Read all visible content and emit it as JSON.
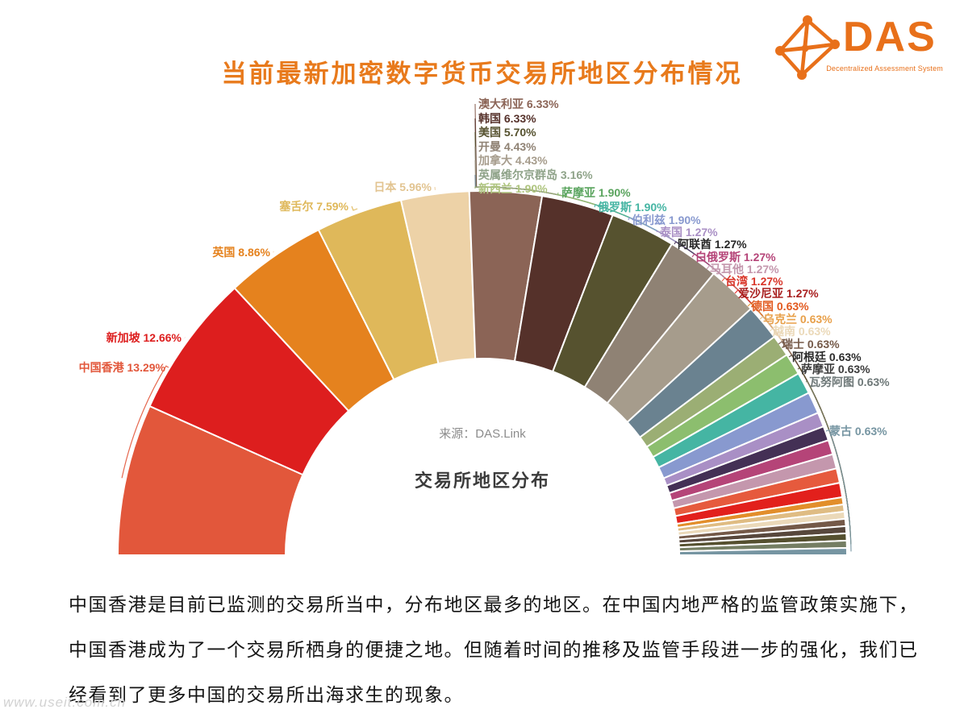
{
  "header": {
    "title": "当前最新加密数字货币交易所地区分布情况",
    "title_color": "#E87A1C",
    "logo": {
      "name": "DAS",
      "subtitle": "Decentralized Assessment System",
      "color": "#E8701A"
    }
  },
  "chart_data": {
    "type": "pie",
    "shape": "half-donut",
    "title": "交易所地区分布",
    "source_note": "来源：DAS.Link",
    "unit": "%",
    "start_angle": 180,
    "end_angle": 0,
    "inner_radius_ratio": 0.54,
    "slices": [
      {
        "name": "中国香港",
        "value": 13.29,
        "color": "#E2573B"
      },
      {
        "name": "新加坡",
        "value": 12.66,
        "color": "#DD1E1E"
      },
      {
        "name": "英国",
        "value": 8.86,
        "color": "#E5821E"
      },
      {
        "name": "塞舌尔",
        "value": 7.59,
        "color": "#DFB85A"
      },
      {
        "name": "日本",
        "value": 5.96,
        "color": "#EDD2A7",
        "label_color": "#E2C491"
      },
      {
        "name": "澳大利亚",
        "value": 6.33,
        "color": "#8B6456"
      },
      {
        "name": "韩国",
        "value": 6.33,
        "color": "#55312A"
      },
      {
        "name": "美国",
        "value": 5.7,
        "color": "#56522F"
      },
      {
        "name": "开曼",
        "value": 4.43,
        "color": "#8F8274"
      },
      {
        "name": "加拿大",
        "value": 4.43,
        "color": "#A69C8C"
      },
      {
        "name": "英属维尔京群岛",
        "value": 3.16,
        "color": "#6A8290",
        "label_color": "#8FA389"
      },
      {
        "name": "新西兰",
        "value": 1.9,
        "color": "#9BAE74",
        "label_color": "#AEC47E"
      },
      {
        "name": "萨摩亚",
        "value": 1.9,
        "color": "#8CBE6E",
        "label_color": "#5AA45E"
      },
      {
        "name": "俄罗斯",
        "value": 1.9,
        "color": "#45B5A3"
      },
      {
        "name": "伯利兹",
        "value": 1.9,
        "color": "#8899CF"
      },
      {
        "name": "泰国",
        "value": 1.27,
        "color": "#A98FC5"
      },
      {
        "name": "阿联酋",
        "value": 1.27,
        "color": "#443055",
        "label_color": "#262626"
      },
      {
        "name": "白俄罗斯",
        "value": 1.27,
        "color": "#B54478"
      },
      {
        "name": "马耳他",
        "value": 1.27,
        "color": "#C497AD"
      },
      {
        "name": "台湾",
        "value": 1.27,
        "color": "#E65A3D",
        "label_color": "#D93428"
      },
      {
        "name": "爱沙尼亚",
        "value": 1.27,
        "color": "#E2201C",
        "label_color": "#A81E1E"
      },
      {
        "name": "德国",
        "value": 0.63,
        "color": "#E28E2B",
        "label_color": "#E25A20"
      },
      {
        "name": "乌克兰",
        "value": 0.63,
        "color": "#DFBC83",
        "label_color": "#E8A04A"
      },
      {
        "name": "越南",
        "value": 0.63,
        "color": "#EBD9B9"
      },
      {
        "name": "瑞士",
        "value": 0.63,
        "color": "#745948"
      },
      {
        "name": "阿根廷",
        "value": 0.63,
        "color": "#57473C",
        "label_color": "#2B2B2B"
      },
      {
        "name": "萨摩亚",
        "value": 0.63,
        "color": "#55502F",
        "label_color": "#3C3C3C"
      },
      {
        "name": "瓦努阿图",
        "value": 0.63,
        "color": "#757E63",
        "label_color": "#6E7878"
      },
      {
        "name": "蒙古",
        "value": 0.63,
        "color": "#7695A2"
      }
    ]
  },
  "body_text": {
    "lines": [
      "中国香港是目前已监测的交易所当中，分布地区最多的地区。在中国内地严格的监管政策实施下，",
      "中国香港成为了一个交易所栖身的便捷之地。但随着时间的推移及监管手段进一步的强化，我们已",
      "经看到了更多中国的交易所出海求生的现象。"
    ]
  },
  "watermark": "www.useit.com.cn"
}
